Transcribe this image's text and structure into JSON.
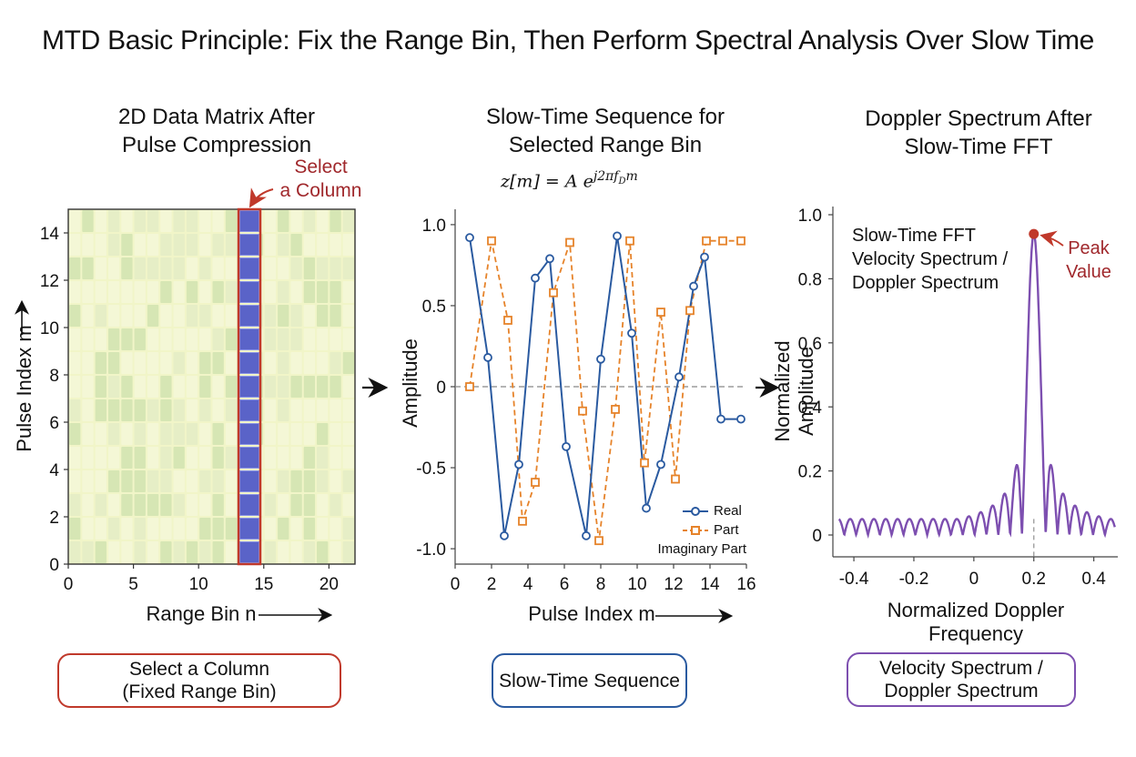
{
  "title": "MTD Basic Principle: Fix the Range Bin, Then Perform Spectral Analysis Over Slow Time",
  "colors": {
    "red": "#c0392b",
    "blue": "#2a5aa0",
    "orange": "#e6832a",
    "purple": "#7d4fb0",
    "matrix_light": "#f1f5c8",
    "matrix_green": "#d6e6b4",
    "column": "#5a63c8"
  },
  "panel1": {
    "title_line1": "2D Data Matrix After",
    "title_line2": "Pulse Compression",
    "annotation_line1": "Select",
    "annotation_line2": "a Column",
    "xlabel": "Range Bin n",
    "ylabel": "Pulse Index m",
    "xticks": [
      "0",
      "5",
      "10",
      "15",
      "20"
    ],
    "yticks": [
      "0",
      "2",
      "4",
      "6",
      "8",
      "10",
      "12",
      "14"
    ],
    "box_line1": "Select a Column",
    "box_line2": "(Fixed Range Bin)"
  },
  "panel2": {
    "title_line1": "Slow-Time Sequence for",
    "title_line2": "Selected Range Bin",
    "formula": "z[m] = A e^{j2πf_D m}",
    "formula_base": "z[m] = A e",
    "formula_exp": "j2πf",
    "formula_sub": "D",
    "formula_tail": "m",
    "xlabel": "Pulse Index m",
    "ylabel": "Amplitude",
    "xticks": [
      "0",
      "2",
      "4",
      "6",
      "8",
      "10",
      "12",
      "14",
      "16"
    ],
    "yticks": [
      "1.0",
      "0.5",
      "0",
      "-0.5",
      "-1.0"
    ],
    "legend": [
      "Real",
      "Part",
      "Imaginary Part"
    ],
    "box_label": "Slow-Time Sequence"
  },
  "panel3": {
    "title_line1": "Doppler Spectrum After",
    "title_line2": "Slow-Time FFT",
    "inner_line1": "Slow-Time FFT",
    "inner_line2": "Velocity Spectrum /",
    "inner_line3": "Doppler Spectrum",
    "peak_line1": "Peak",
    "peak_line2": "Value",
    "xlabel": "Normalized Doppler Frequency",
    "ylabel": "Normalized Amplitude",
    "xticks": [
      "-0.4",
      "-0.2",
      "0",
      "0.2",
      "0.4"
    ],
    "yticks": [
      "1.0",
      "0.8",
      "0.6",
      "0.4",
      "0.2",
      "0"
    ],
    "box_line1": "Velocity Spectrum /",
    "box_line2": "Doppler Spectrum"
  },
  "chart_data": [
    {
      "type": "heatmap",
      "xlabel": "Range Bin n",
      "ylabel": "Pulse Index m",
      "xlim": [
        0,
        22
      ],
      "ylim": [
        0,
        15
      ],
      "selected_column": 14
    },
    {
      "type": "line",
      "xlabel": "Pulse Index m",
      "ylabel": "Amplitude",
      "ylim": [
        -1.05,
        1.05
      ],
      "xlim": [
        0,
        16
      ],
      "series": [
        {
          "name": "Real",
          "x": [
            0.8,
            1.8,
            2.7,
            3.5,
            4.4,
            5.2,
            6.1,
            7.2,
            8.0,
            8.9,
            9.7,
            10.5,
            11.3,
            12.3,
            13.1,
            13.7,
            14.6,
            15.7
          ],
          "y": [
            0.92,
            0.18,
            -0.92,
            -0.48,
            0.67,
            0.79,
            -0.37,
            -0.92,
            0.17,
            0.93,
            0.33,
            -0.75,
            -0.48,
            0.06,
            0.62,
            0.8,
            -0.2,
            -0.2
          ]
        },
        {
          "name": "Imaginary Part",
          "x": [
            0.8,
            2.0,
            2.9,
            3.7,
            4.4,
            5.4,
            6.3,
            7.0,
            7.9,
            8.8,
            9.6,
            10.4,
            11.3,
            12.1,
            12.9,
            13.8,
            14.7,
            15.7
          ],
          "y": [
            0.0,
            0.9,
            0.41,
            -0.83,
            -0.59,
            0.58,
            0.89,
            -0.15,
            -0.95,
            -0.14,
            0.9,
            -0.47,
            0.46,
            -0.57,
            0.47,
            0.9,
            0.9,
            0.9
          ]
        }
      ]
    },
    {
      "type": "line",
      "xlabel": "Normalized Doppler Frequency",
      "ylabel": "Normalized Amplitude",
      "xlim": [
        -0.47,
        0.48
      ],
      "ylim": [
        0,
        1.0
      ],
      "peak": {
        "x": 0.2,
        "y": 0.94
      },
      "sidelobe": 0.25
    }
  ]
}
